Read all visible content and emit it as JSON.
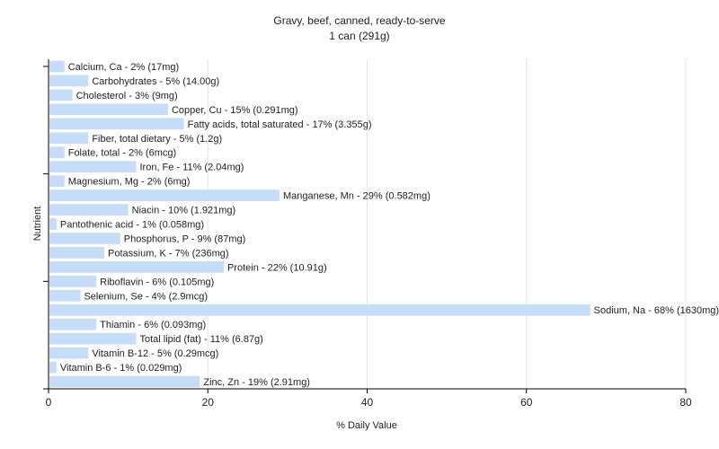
{
  "chart_data": {
    "type": "bar",
    "orientation": "horizontal",
    "title": "Gravy, beef, canned, ready-to-serve",
    "subtitle": "1 can (291g)",
    "xlabel": "% Daily Value",
    "ylabel": "Nutrient",
    "xlim": [
      0,
      80
    ],
    "xticks": [
      0,
      20,
      40,
      60,
      80
    ],
    "grid": true,
    "legend": "none",
    "bar_color": "#c6dcf7",
    "categories": [
      "Calcium, Ca",
      "Carbohydrates",
      "Cholesterol",
      "Copper, Cu",
      "Fatty acids, total saturated",
      "Fiber, total dietary",
      "Folate, total",
      "Iron, Fe",
      "Magnesium, Mg",
      "Manganese, Mn",
      "Niacin",
      "Pantothenic acid",
      "Phosphorus, P",
      "Potassium, K",
      "Protein",
      "Riboflavin",
      "Selenium, Se",
      "Sodium, Na",
      "Thiamin",
      "Total lipid (fat)",
      "Vitamin B-12",
      "Vitamin B-6",
      "Zinc, Zn"
    ],
    "values": [
      2,
      5,
      3,
      15,
      17,
      5,
      2,
      11,
      2,
      29,
      10,
      1,
      9,
      7,
      22,
      6,
      4,
      68,
      6,
      11,
      5,
      1,
      19
    ],
    "labels": [
      "Calcium, Ca - 2% (17mg)",
      "Carbohydrates - 5% (14.00g)",
      "Cholesterol - 3% (9mg)",
      "Copper, Cu - 15% (0.291mg)",
      "Fatty acids, total saturated - 17% (3.355g)",
      "Fiber, total dietary - 5% (1.2g)",
      "Folate, total - 2% (6mcg)",
      "Iron, Fe - 11% (2.04mg)",
      "Magnesium, Mg - 2% (6mg)",
      "Manganese, Mn - 29% (0.582mg)",
      "Niacin - 10% (1.921mg)",
      "Pantothenic acid - 1% (0.058mg)",
      "Phosphorus, P - 9% (87mg)",
      "Potassium, K - 7% (236mg)",
      "Protein - 22% (10.91g)",
      "Riboflavin - 6% (0.105mg)",
      "Selenium, Se - 4% (2.9mcg)",
      "Sodium, Na - 68% (1630mg)",
      "Thiamin - 6% (0.093mg)",
      "Total lipid (fat) - 11% (6.87g)",
      "Vitamin B-12 - 5% (0.29mcg)",
      "Vitamin B-6 - 1% (0.029mg)",
      "Zinc, Zn - 19% (2.91mg)"
    ]
  }
}
